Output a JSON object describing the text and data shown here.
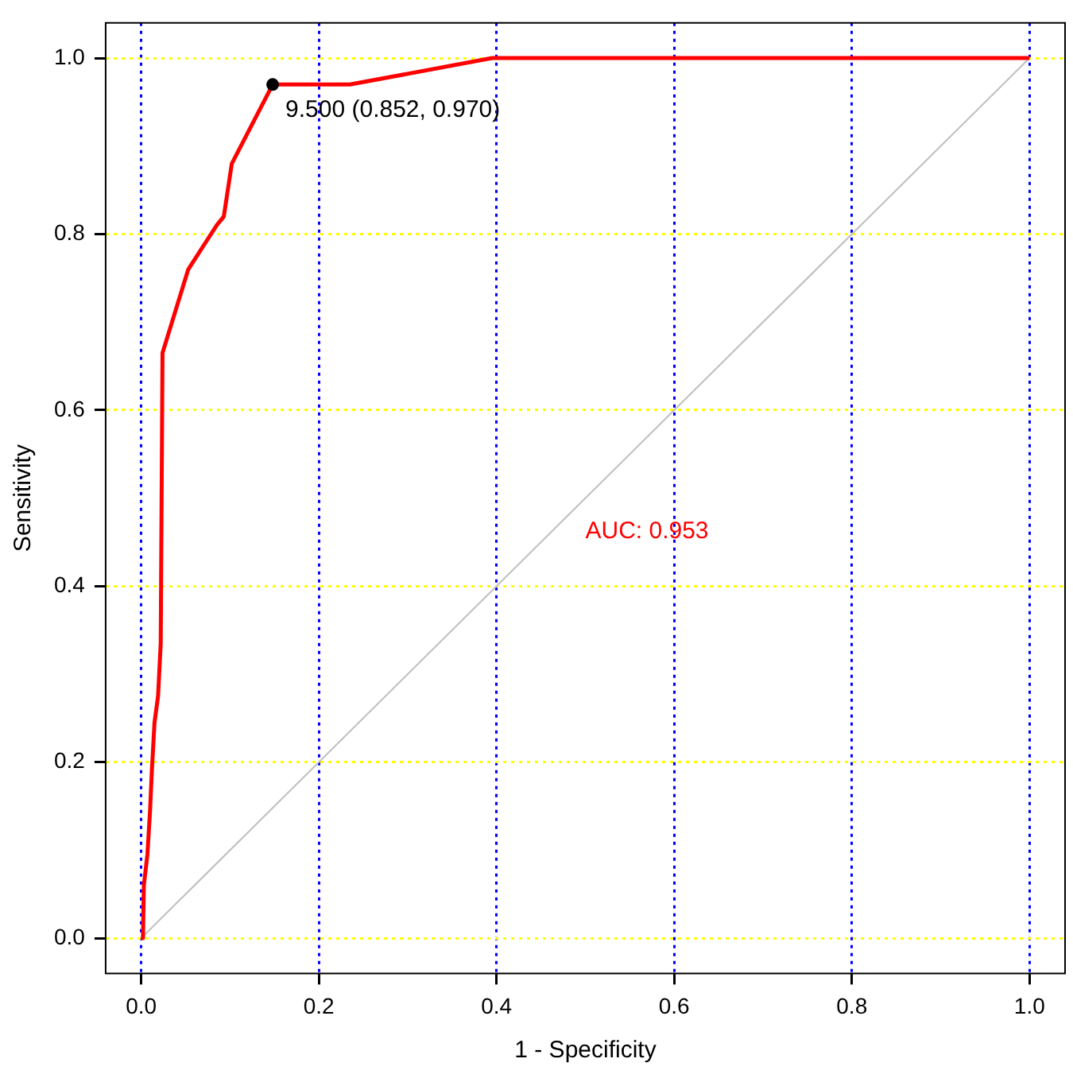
{
  "chart_data": {
    "type": "line",
    "xlabel": "1 - Specificity",
    "ylabel": "Sensitivity",
    "xlim": [
      -0.04,
      1.04
    ],
    "ylim": [
      -0.04,
      1.04
    ],
    "xticks": [
      {
        "value": 0,
        "label": "0.0"
      },
      {
        "value": 0.2,
        "label": "0.2"
      },
      {
        "value": 0.4,
        "label": "0.4"
      },
      {
        "value": 0.6,
        "label": "0.6"
      },
      {
        "value": 0.8,
        "label": "0.8"
      },
      {
        "value": 1,
        "label": "1.0"
      }
    ],
    "yticks": [
      {
        "value": 0,
        "label": "0.0"
      },
      {
        "value": 0.2,
        "label": "0.2"
      },
      {
        "value": 0.4,
        "label": "0.4"
      },
      {
        "value": 0.6,
        "label": "0.6"
      },
      {
        "value": 0.8,
        "label": "0.8"
      },
      {
        "value": 1,
        "label": "1.0"
      }
    ],
    "grid": true,
    "legend": false,
    "marker": "none",
    "line_style": "solid",
    "series": [
      {
        "type": "line",
        "color": "#bebebe",
        "x": [
          0,
          1
        ],
        "values": [
          0,
          1
        ]
      },
      {
        "type": "line",
        "color": "#ff0000",
        "x": [
          0,
          0.002,
          0.003,
          0.007,
          0.01,
          0.012,
          0.015,
          0.019,
          0.022,
          0.024,
          0.053,
          0.085,
          0.093,
          0.102,
          0.148,
          0.235,
          0.395,
          1
        ],
        "values": [
          0,
          0,
          0.06,
          0.095,
          0.145,
          0.19,
          0.245,
          0.275,
          0.335,
          0.665,
          0.76,
          0.81,
          0.82,
          0.88,
          0.97,
          0.97,
          1,
          1
        ]
      },
      {
        "type": "scatter",
        "color": "#000000",
        "x": [
          0.148
        ],
        "values": [
          0.97
        ],
        "marker": "circle"
      }
    ],
    "annotations": [
      {
        "text": "9.500 (0.852, 0.970)",
        "x": 0.148,
        "y": 0.97
      },
      "AUC: 0.953"
    ]
  }
}
